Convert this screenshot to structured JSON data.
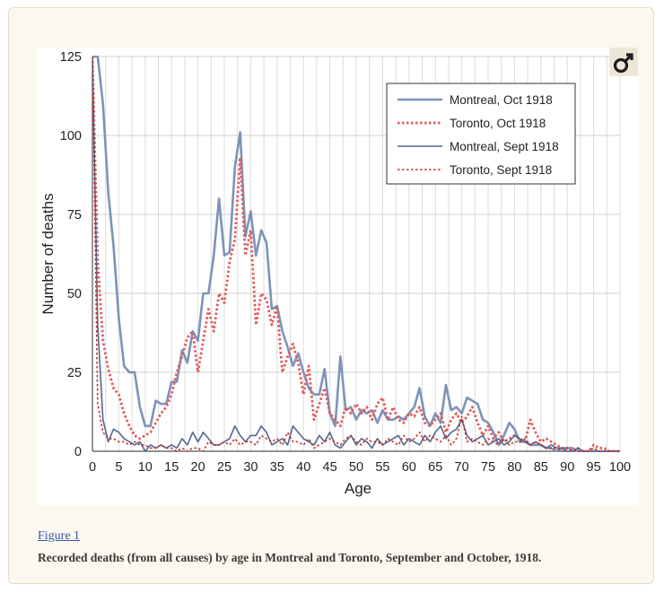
{
  "figure": {
    "link_label": "Figure 1",
    "caption": "Recorded deaths (from all causes) by age in Montreal and Toronto, September and October, 1918.",
    "badge_icon": "gender-symbol-icon"
  },
  "chart_data": {
    "type": "line",
    "title": "",
    "xlabel": "Age",
    "ylabel": "Number of deaths",
    "xlim": [
      0,
      100
    ],
    "ylim": [
      0,
      125
    ],
    "xticks": [
      0,
      5,
      10,
      15,
      20,
      25,
      30,
      35,
      40,
      45,
      50,
      55,
      60,
      65,
      70,
      75,
      80,
      85,
      90,
      95,
      100
    ],
    "yticks": [
      0,
      25,
      50,
      75,
      100,
      125
    ],
    "grid": true,
    "legend_position": "top-right",
    "series": [
      {
        "name": "Montreal, Oct 1918",
        "color": "#7d93b8",
        "dash": "solid",
        "stroke_width": 2.6,
        "x": [
          0,
          1,
          2,
          3,
          4,
          5,
          6,
          7,
          8,
          9,
          10,
          11,
          12,
          13,
          14,
          15,
          16,
          17,
          18,
          19,
          20,
          21,
          22,
          23,
          24,
          25,
          26,
          27,
          28,
          29,
          30,
          31,
          32,
          33,
          34,
          35,
          36,
          37,
          38,
          39,
          40,
          41,
          42,
          43,
          44,
          45,
          46,
          47,
          48,
          49,
          50,
          51,
          52,
          53,
          54,
          55,
          56,
          57,
          58,
          59,
          60,
          61,
          62,
          63,
          64,
          65,
          66,
          67,
          68,
          69,
          70,
          71,
          72,
          73,
          74,
          75,
          76,
          77,
          78,
          79,
          80,
          81,
          82,
          83,
          84,
          85,
          86,
          87,
          88,
          89,
          90,
          91,
          92,
          93,
          94,
          95,
          96,
          97,
          98,
          99,
          100
        ],
        "y": [
          125,
          125,
          110,
          82,
          65,
          42,
          27,
          25,
          25,
          14,
          8,
          8,
          16,
          15,
          15,
          22,
          22,
          32,
          28,
          38,
          35,
          50,
          50,
          62,
          80,
          62,
          63,
          90,
          101,
          68,
          76,
          62,
          70,
          66,
          45,
          46,
          38,
          33,
          27,
          31,
          25,
          20,
          18,
          18,
          26,
          12,
          8,
          30,
          13,
          14,
          10,
          13,
          12,
          13,
          9,
          13,
          10,
          10,
          11,
          10,
          12,
          14,
          20,
          11,
          8,
          12,
          9,
          21,
          13,
          14,
          12,
          17,
          16,
          15,
          10,
          9,
          6,
          2,
          5,
          9,
          7,
          3,
          3,
          2,
          2,
          2,
          1,
          1,
          0,
          1,
          1,
          1,
          0,
          0,
          0,
          0,
          0,
          0,
          0,
          0,
          0
        ]
      },
      {
        "name": "Toronto, Oct 1918",
        "color": "#e05c5c",
        "dash": "dotted",
        "stroke_width": 2.8,
        "x": [
          0,
          1,
          2,
          3,
          4,
          5,
          6,
          7,
          8,
          9,
          10,
          11,
          12,
          13,
          14,
          15,
          16,
          17,
          18,
          19,
          20,
          21,
          22,
          23,
          24,
          25,
          26,
          27,
          28,
          29,
          30,
          31,
          32,
          33,
          34,
          35,
          36,
          37,
          38,
          39,
          40,
          41,
          42,
          43,
          44,
          45,
          46,
          47,
          48,
          49,
          50,
          51,
          52,
          53,
          54,
          55,
          56,
          57,
          58,
          59,
          60,
          61,
          62,
          63,
          64,
          65,
          66,
          67,
          68,
          69,
          70,
          71,
          72,
          73,
          74,
          75,
          76,
          77,
          78,
          79,
          80,
          81,
          82,
          83,
          84,
          85,
          86,
          87,
          88,
          89,
          90,
          91,
          92,
          93,
          94,
          95,
          96,
          97,
          98,
          99,
          100
        ],
        "y": [
          125,
          60,
          35,
          26,
          20,
          18,
          12,
          8,
          5,
          4,
          5,
          6,
          9,
          12,
          14,
          18,
          25,
          30,
          36,
          38,
          25,
          35,
          45,
          38,
          50,
          47,
          60,
          67,
          93,
          62,
          70,
          40,
          50,
          48,
          40,
          46,
          25,
          30,
          34,
          28,
          18,
          27,
          10,
          15,
          20,
          12,
          10,
          8,
          14,
          12,
          15,
          12,
          14,
          10,
          15,
          17,
          10,
          14,
          10,
          9,
          12,
          11,
          14,
          9,
          8,
          10,
          12,
          6,
          10,
          12,
          9,
          11,
          14,
          9,
          5,
          8,
          4,
          6,
          3,
          4,
          5,
          4,
          3,
          10,
          6,
          3,
          4,
          3,
          2,
          1,
          1,
          0,
          1,
          0,
          0,
          2,
          1,
          1,
          0,
          0,
          0
        ]
      },
      {
        "name": "Montreal, Sept 1918",
        "color": "#52688f",
        "dash": "solid",
        "stroke_width": 1.6,
        "x": [
          0,
          1,
          2,
          3,
          4,
          5,
          6,
          7,
          8,
          9,
          10,
          11,
          12,
          13,
          14,
          15,
          16,
          17,
          18,
          19,
          20,
          21,
          22,
          23,
          24,
          25,
          26,
          27,
          28,
          29,
          30,
          31,
          32,
          33,
          34,
          35,
          36,
          37,
          38,
          39,
          40,
          41,
          42,
          43,
          44,
          45,
          46,
          47,
          48,
          49,
          50,
          51,
          52,
          53,
          54,
          55,
          56,
          57,
          58,
          59,
          60,
          61,
          62,
          63,
          64,
          65,
          66,
          67,
          68,
          69,
          70,
          71,
          72,
          73,
          74,
          75,
          76,
          77,
          78,
          79,
          80,
          81,
          82,
          83,
          84,
          85,
          86,
          87,
          88,
          89,
          90,
          91,
          92,
          93,
          94,
          95,
          96,
          97,
          98,
          99,
          100
        ],
        "y": [
          125,
          40,
          10,
          3,
          7,
          6,
          4,
          3,
          2,
          3,
          0,
          2,
          1,
          2,
          1,
          2,
          1,
          4,
          2,
          6,
          3,
          6,
          4,
          2,
          2,
          3,
          4,
          8,
          5,
          3,
          5,
          5,
          8,
          6,
          2,
          3,
          4,
          2,
          8,
          6,
          4,
          3,
          2,
          5,
          3,
          6,
          2,
          1,
          3,
          5,
          2,
          4,
          3,
          1,
          4,
          2,
          3,
          4,
          5,
          2,
          4,
          3,
          2,
          5,
          3,
          6,
          8,
          4,
          6,
          7,
          10,
          5,
          3,
          4,
          5,
          2,
          3,
          4,
          2,
          3,
          5,
          4,
          3,
          2,
          3,
          2,
          1,
          2,
          1,
          1,
          0,
          0,
          1,
          0,
          0,
          0,
          0,
          0,
          0,
          0,
          0
        ]
      },
      {
        "name": "Toronto, Sept 1918",
        "color": "#c43030",
        "dash": "dotted",
        "stroke_width": 1.6,
        "x": [
          0,
          1,
          2,
          3,
          4,
          5,
          6,
          7,
          8,
          9,
          10,
          11,
          12,
          13,
          14,
          15,
          16,
          17,
          18,
          19,
          20,
          21,
          22,
          23,
          24,
          25,
          26,
          27,
          28,
          29,
          30,
          31,
          32,
          33,
          34,
          35,
          36,
          37,
          38,
          39,
          40,
          41,
          42,
          43,
          44,
          45,
          46,
          47,
          48,
          49,
          50,
          51,
          52,
          53,
          54,
          55,
          56,
          57,
          58,
          59,
          60,
          61,
          62,
          63,
          64,
          65,
          66,
          67,
          68,
          69,
          70,
          71,
          72,
          73,
          74,
          75,
          76,
          77,
          78,
          79,
          80,
          81,
          82,
          83,
          84,
          85,
          86,
          87,
          88,
          89,
          90,
          91,
          92,
          93,
          94,
          95,
          96,
          97,
          98,
          99,
          100
        ],
        "y": [
          125,
          15,
          6,
          4,
          4,
          3,
          3,
          2,
          3,
          2,
          2,
          1,
          1,
          2,
          1,
          1,
          0,
          1,
          0,
          1,
          1,
          0,
          3,
          2,
          2,
          3,
          2,
          4,
          2,
          3,
          3,
          2,
          5,
          4,
          3,
          4,
          2,
          6,
          3,
          3,
          2,
          4,
          1,
          2,
          3,
          4,
          3,
          2,
          4,
          5,
          3,
          2,
          4,
          3,
          3,
          2,
          4,
          3,
          2,
          5,
          3,
          4,
          6,
          3,
          5,
          4,
          3,
          5,
          2,
          4,
          11,
          3,
          4,
          3,
          2,
          4,
          3,
          2,
          4,
          2,
          3,
          3,
          4,
          2,
          3,
          2,
          1,
          1,
          1,
          0,
          1,
          0,
          0,
          0,
          0,
          1,
          0,
          0,
          0,
          0,
          0
        ]
      }
    ]
  }
}
